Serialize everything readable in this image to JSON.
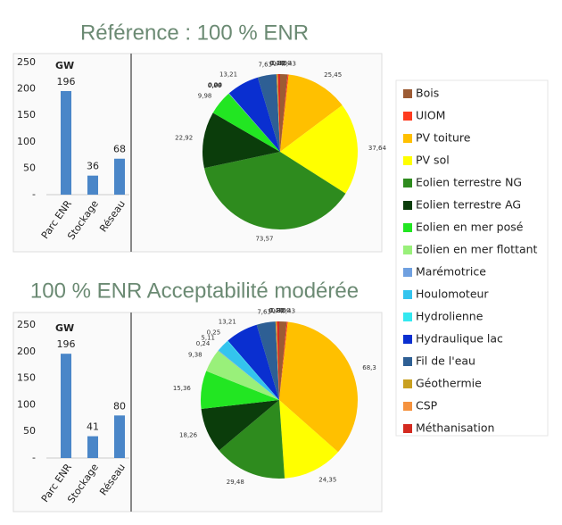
{
  "chart_data": [
    {
      "type": "bar",
      "title": "Référence : 100 % ENR",
      "ylabel": "GW",
      "categories": [
        "Parc ENR",
        "Stockage",
        "Réseau"
      ],
      "values": [
        196,
        36,
        68
      ],
      "color": "#4a86c8",
      "ylim": [
        0,
        250
      ],
      "yticks": [
        {
          "value": 0,
          "label": "-"
        },
        50,
        100,
        150,
        200,
        250
      ]
    },
    {
      "type": "pie",
      "categories": [
        "Bois",
        "UIOM",
        "PV toiture",
        "PV sol",
        "Eolien terrestre NG",
        "Eolien terrestre AG",
        "Eolien en mer posé",
        "Eolien en mer  flottant",
        "Marémotrice",
        "Houlomoteur",
        "Hydrolienne",
        "Hydraulique lac",
        "Fil de l'eau",
        "Géothermie",
        "CSP",
        "Méthanisation"
      ],
      "colors": [
        "#9c5b34",
        "#ff3b1f",
        "#ffc000",
        "#ffff00",
        "#2e8b1e",
        "#0b3d0b",
        "#22e622",
        "#99f07a",
        "#6fa0e0",
        "#33c4ee",
        "#33e8f0",
        "#0a2fd0",
        "#2e5f94",
        "#c9a020",
        "#f5923e",
        "#d42a20"
      ],
      "values": [
        3.0,
        0.43,
        25.45,
        37.64,
        73.57,
        22.92,
        9.98,
        0.0,
        0.24,
        0.0,
        0.0,
        13.21,
        7.63,
        0.42,
        0.14,
        0.92
      ],
      "value_labels": [
        "3,00",
        "0,43",
        "25,45",
        "37,64",
        "73,57",
        "22,92",
        "9,98",
        "0,00",
        "0,24",
        "0,00",
        "0,00",
        "13,21",
        "7,63",
        "0,42",
        "0,14",
        "0,92"
      ]
    },
    {
      "type": "bar",
      "title": "100 % ENR Acceptabilité modérée",
      "ylabel": "GW",
      "categories": [
        "Parc ENR",
        "Stockage",
        "Réseau"
      ],
      "values": [
        196,
        41,
        80
      ],
      "color": "#4a86c8",
      "ylim": [
        0,
        250
      ],
      "yticks": [
        {
          "value": 0,
          "label": "-"
        },
        50,
        100,
        150,
        200,
        250
      ]
    },
    {
      "type": "pie",
      "values": [
        3.0,
        0.43,
        68.3,
        24.35,
        29.48,
        18.26,
        15.36,
        9.38,
        0.24,
        5.11,
        0.25,
        13.21,
        7.63,
        0.42,
        0.14,
        0.92
      ],
      "value_labels": [
        "3,00",
        "0,43",
        "68,3",
        "24,35",
        "29,48",
        "18,26",
        "15,36",
        "9,38",
        "0,24",
        "5,11",
        "0,25",
        "13,21",
        "7,63",
        "0,42",
        "0,14",
        "0,92"
      ]
    }
  ]
}
